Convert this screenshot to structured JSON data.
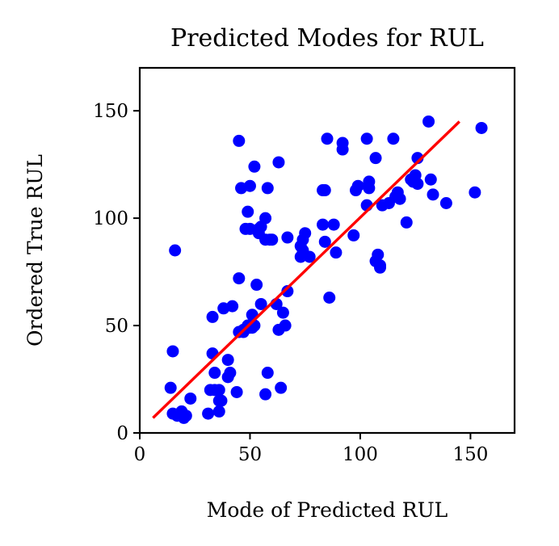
{
  "chart_data": {
    "type": "scatter",
    "title": "Predicted Modes for RUL",
    "xlabel": "Mode of Predicted RUL",
    "ylabel": "Ordered True RUL",
    "xlim": [
      0,
      170
    ],
    "ylim": [
      0,
      170
    ],
    "xticks": [
      0,
      50,
      100,
      150
    ],
    "yticks": [
      0,
      50,
      100,
      150
    ],
    "grid": false,
    "legend": false,
    "colors": {
      "points": "#0000ff",
      "fit_line": "#ff0000",
      "axes": "#000000"
    },
    "fit_line": {
      "x": [
        6,
        145
      ],
      "y": [
        7,
        145
      ]
    },
    "points": {
      "x": [
        16,
        15,
        17,
        19,
        21,
        20,
        23,
        18,
        14,
        15,
        31,
        32,
        33,
        34,
        34,
        36,
        36,
        37,
        38,
        40,
        40,
        41,
        42,
        44,
        36,
        33,
        45,
        47,
        49,
        51,
        52,
        50,
        53,
        55,
        57,
        58,
        59,
        62,
        63,
        64,
        66,
        67,
        65,
        57,
        58,
        45,
        46,
        48,
        50,
        52,
        54,
        55,
        57,
        50,
        54,
        60,
        63,
        67,
        45,
        47,
        51,
        49,
        73,
        75,
        77,
        73,
        74,
        74,
        86,
        83,
        83,
        84,
        89,
        88,
        85,
        84,
        97,
        98,
        99,
        103,
        104,
        104,
        107,
        92,
        92,
        103,
        110,
        113,
        116,
        115,
        118,
        117,
        123,
        124,
        125,
        126,
        131,
        132,
        133,
        139,
        121,
        116,
        108,
        109,
        109,
        107,
        126,
        152,
        155
      ],
      "y": [
        85,
        38,
        8,
        10,
        8,
        7,
        16,
        9,
        21,
        9,
        9,
        20,
        37,
        28,
        20,
        20,
        10,
        15,
        58,
        26,
        34,
        28,
        59,
        19,
        15,
        54,
        47,
        48,
        50,
        55,
        50,
        49,
        69,
        60,
        18,
        28,
        90,
        60,
        48,
        21,
        50,
        66,
        56,
        90,
        114,
        136,
        114,
        95,
        115,
        124,
        95,
        96,
        100,
        95,
        93,
        90,
        126,
        91,
        72,
        47,
        49,
        103,
        82,
        93,
        82,
        87,
        90,
        85,
        63,
        113,
        97,
        89,
        84,
        97,
        137,
        113,
        92,
        113,
        115,
        137,
        117,
        114,
        128,
        132,
        135,
        106,
        106,
        107,
        110,
        137,
        109,
        112,
        118,
        117,
        120,
        128,
        145,
        118,
        111,
        107,
        98,
        110,
        83,
        78,
        77,
        80,
        116,
        112,
        142
      ]
    }
  }
}
